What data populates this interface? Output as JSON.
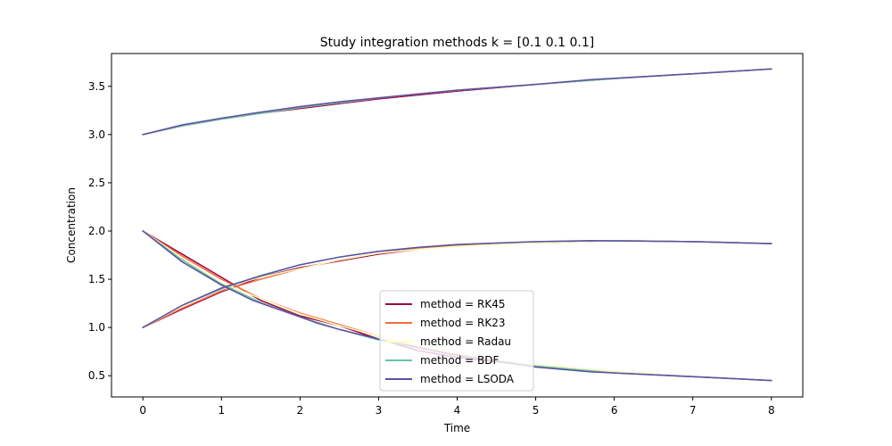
{
  "chart_data": {
    "type": "line",
    "title": "Study integration methods k = [0.1 0.1 0.1]",
    "xlabel": "Time",
    "ylabel": "Concentration",
    "xlim": [
      -0.4,
      8.4
    ],
    "ylim": [
      0.28,
      3.84
    ],
    "xticks": [
      0,
      1,
      2,
      3,
      4,
      5,
      6,
      7,
      8
    ],
    "yticks": [
      0.5,
      1.0,
      1.5,
      2.0,
      2.5,
      3.0,
      3.5
    ],
    "grid": false,
    "legend_position": "lower-center",
    "series": [
      {
        "name": "method = RK45",
        "color": "#9e0142",
        "curves": [
          {
            "x": [
              0,
              0.5,
              1.0,
              1.5,
              2.0,
              2.5,
              3.0,
              3.5,
              4.0,
              5.0,
              6.0,
              7.0,
              8.0
            ],
            "y": [
              3.0,
              3.09,
              3.16,
              3.22,
              3.27,
              3.32,
              3.37,
              3.41,
              3.45,
              3.52,
              3.58,
              3.63,
              3.68
            ]
          },
          {
            "x": [
              0,
              0.5,
              1.0,
              1.5,
              2.0,
              2.5,
              3.0,
              3.5,
              4.0,
              5.0,
              6.0,
              7.0,
              8.0
            ],
            "y": [
              2.0,
              1.76,
              1.52,
              1.28,
              1.12,
              1.02,
              0.88,
              0.76,
              0.69,
              0.6,
              0.53,
              0.49,
              0.45
            ]
          },
          {
            "x": [
              0,
              0.5,
              1.0,
              1.5,
              2.0,
              2.5,
              3.0,
              3.5,
              4.0,
              5.0,
              6.0,
              7.0,
              8.0
            ],
            "y": [
              1.0,
              1.19,
              1.37,
              1.52,
              1.62,
              1.69,
              1.76,
              1.81,
              1.85,
              1.88,
              1.9,
              1.89,
              1.87
            ]
          }
        ]
      },
      {
        "name": "method = RK23",
        "color": "#f46d43",
        "curves": [
          {
            "x": [
              0,
              0.5,
              1.0,
              1.5,
              2.0,
              2.5,
              3.0,
              3.5,
              4.0,
              5.0,
              6.0,
              7.0,
              8.0
            ],
            "y": [
              3.0,
              3.09,
              3.16,
              3.22,
              3.28,
              3.33,
              3.38,
              3.42,
              3.46,
              3.52,
              3.58,
              3.63,
              3.68
            ]
          },
          {
            "x": [
              0,
              0.5,
              1.0,
              1.5,
              2.0,
              2.5,
              3.0,
              3.5,
              4.0,
              5.0,
              6.0,
              7.0,
              8.0
            ],
            "y": [
              2.0,
              1.74,
              1.5,
              1.3,
              1.15,
              1.03,
              0.91,
              0.8,
              0.72,
              0.61,
              0.54,
              0.49,
              0.45
            ]
          },
          {
            "x": [
              0,
              0.5,
              1.0,
              1.5,
              2.0,
              2.5,
              3.0,
              3.5,
              4.0,
              5.0,
              6.0,
              7.0,
              8.0
            ],
            "y": [
              1.0,
              1.2,
              1.38,
              1.5,
              1.61,
              1.7,
              1.77,
              1.82,
              1.85,
              1.88,
              1.9,
              1.89,
              1.87
            ]
          }
        ]
      },
      {
        "name": "method = Radau",
        "color": "#ffffbf",
        "curves": [
          {
            "x": [
              0,
              0.5,
              1.0,
              1.5,
              2.0,
              2.5,
              3.0,
              3.5,
              4.0,
              5.0,
              6.0,
              7.0,
              8.0
            ],
            "y": [
              3.0,
              3.09,
              3.16,
              3.22,
              3.28,
              3.33,
              3.38,
              3.42,
              3.46,
              3.52,
              3.58,
              3.63,
              3.68
            ]
          },
          {
            "x": [
              0,
              0.5,
              1.0,
              1.5,
              2.0,
              2.5,
              3.0,
              3.5,
              4.0,
              5.0,
              6.0,
              7.0,
              8.0
            ],
            "y": [
              2.0,
              1.72,
              1.46,
              1.3,
              1.14,
              1.02,
              0.91,
              0.81,
              0.73,
              0.61,
              0.54,
              0.49,
              0.45
            ]
          },
          {
            "x": [
              0,
              0.5,
              1.0,
              1.5,
              2.0,
              2.5,
              3.0,
              3.5,
              4.0,
              5.0,
              6.0,
              7.0,
              8.0
            ],
            "y": [
              1.0,
              1.22,
              1.41,
              1.52,
              1.61,
              1.7,
              1.77,
              1.81,
              1.84,
              1.88,
              1.9,
              1.89,
              1.87
            ]
          }
        ]
      },
      {
        "name": "method = BDF",
        "color": "#66c2a5",
        "curves": [
          {
            "x": [
              0,
              0.5,
              1.0,
              1.5,
              2.0,
              2.5,
              3.0,
              3.5,
              4.0,
              5.0,
              6.0,
              7.0,
              8.0
            ],
            "y": [
              3.0,
              3.09,
              3.16,
              3.22,
              3.28,
              3.33,
              3.38,
              3.42,
              3.46,
              3.52,
              3.58,
              3.63,
              3.68
            ]
          },
          {
            "x": [
              0,
              0.5,
              1.0,
              1.5,
              2.0,
              2.5,
              3.0,
              3.5,
              4.0,
              5.0,
              6.0,
              7.0,
              8.0
            ],
            "y": [
              2.0,
              1.7,
              1.45,
              1.26,
              1.11,
              0.98,
              0.87,
              0.79,
              0.71,
              0.6,
              0.53,
              0.49,
              0.45
            ]
          },
          {
            "x": [
              0,
              0.5,
              1.0,
              1.5,
              2.0,
              2.5,
              3.0,
              3.5,
              4.0,
              5.0,
              6.0,
              7.0,
              8.0
            ],
            "y": [
              1.0,
              1.23,
              1.4,
              1.54,
              1.65,
              1.73,
              1.79,
              1.83,
              1.86,
              1.89,
              1.9,
              1.89,
              1.87
            ]
          }
        ]
      },
      {
        "name": "method = LSODA",
        "color": "#5e4fa2",
        "curves": [
          {
            "x": [
              0,
              0.5,
              1.0,
              1.4,
              2.0,
              2.5,
              3.0,
              3.5,
              4.0,
              5.0,
              5.7,
              7.0,
              8.0
            ],
            "y": [
              3.0,
              3.1,
              3.17,
              3.22,
              3.29,
              3.34,
              3.38,
              3.42,
              3.46,
              3.52,
              3.57,
              3.63,
              3.68
            ]
          },
          {
            "x": [
              0,
              0.5,
              1.0,
              1.4,
              2.0,
              2.2,
              2.5,
              3.0,
              3.5,
              4.0,
              5.0,
              5.7,
              7.0,
              8.0
            ],
            "y": [
              2.0,
              1.68,
              1.44,
              1.28,
              1.11,
              1.05,
              0.98,
              0.88,
              0.79,
              0.71,
              0.59,
              0.54,
              0.49,
              0.45
            ]
          },
          {
            "x": [
              0,
              0.5,
              1.0,
              1.4,
              2.0,
              2.5,
              3.0,
              3.5,
              4.0,
              5.0,
              5.7,
              7.0,
              8.0
            ],
            "y": [
              1.0,
              1.23,
              1.41,
              1.51,
              1.65,
              1.73,
              1.79,
              1.83,
              1.86,
              1.89,
              1.9,
              1.89,
              1.87
            ]
          }
        ]
      }
    ]
  }
}
